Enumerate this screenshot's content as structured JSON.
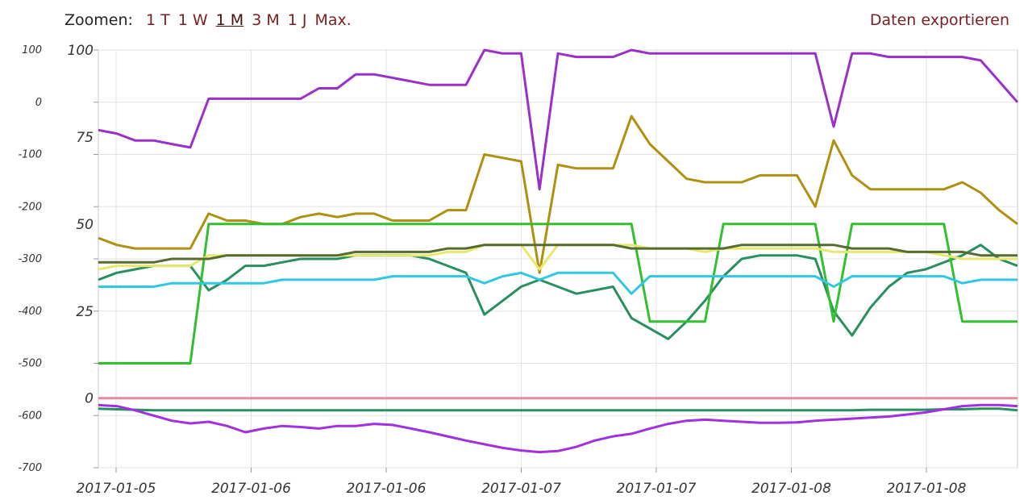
{
  "toolbar": {
    "zoom_label": "Zoomen:",
    "zoom_options": [
      "1 T",
      "1 W",
      "1 M",
      "3 M",
      "1 J",
      "Max."
    ],
    "active_zoom": "1 M",
    "export_label": "Daten exportieren"
  },
  "chart_data": {
    "type": "line",
    "title": "",
    "x_tick_labels": [
      "2017-01-05",
      "2017-01-06",
      "2017-01-06",
      "2017-01-07",
      "2017-01-07",
      "2017-01-08",
      "2017-01-08"
    ],
    "y_left": {
      "ticks": [
        100,
        0,
        -100,
        -200,
        -300,
        -400,
        -500,
        -600,
        -700
      ],
      "ylim": [
        -700,
        100
      ]
    },
    "y_right": {
      "ticks": [
        100,
        75,
        50,
        25,
        0
      ],
      "ylim": [
        -20,
        100
      ]
    },
    "grid": true,
    "x": [
      0,
      2,
      4,
      6,
      8,
      10,
      12,
      14,
      16,
      18,
      20,
      22,
      24,
      26,
      28,
      30,
      32,
      34,
      36,
      38,
      40,
      42,
      44,
      46,
      48,
      50,
      52,
      54,
      56,
      58,
      60,
      62,
      64,
      66,
      68,
      70,
      72,
      74,
      76,
      78,
      80,
      82,
      84,
      86,
      88,
      90,
      92,
      94,
      96,
      98,
      100
    ],
    "series": [
      {
        "color": "#9b30c8",
        "axis": "right",
        "values": [
          77,
          76,
          74,
          74,
          73,
          72,
          86,
          86,
          86,
          86,
          86,
          86,
          89,
          89,
          93,
          93,
          92,
          91,
          90,
          90,
          90,
          100,
          99,
          99,
          60,
          99,
          98,
          98,
          98,
          100,
          99,
          99,
          99,
          99,
          99,
          99,
          99,
          99,
          99,
          99,
          78,
          99,
          99,
          98,
          98,
          98,
          98,
          98,
          97,
          91,
          85
        ]
      },
      {
        "color": "#b09010",
        "axis": "right",
        "values": [
          46,
          44,
          43,
          43,
          43,
          43,
          53,
          51,
          51,
          50,
          50,
          52,
          53,
          52,
          53,
          53,
          51,
          51,
          51,
          54,
          54,
          70,
          69,
          68,
          36,
          67,
          66,
          66,
          66,
          81,
          73,
          68,
          63,
          62,
          62,
          62,
          64,
          64,
          64,
          55,
          74,
          64,
          60,
          60,
          60,
          60,
          60,
          62,
          59,
          54,
          50
        ]
      },
      {
        "color": "#2a8f60",
        "axis": "right",
        "values": [
          34,
          36,
          37,
          38,
          38,
          38,
          31,
          34,
          38,
          38,
          39,
          40,
          40,
          40,
          41,
          41,
          41,
          41,
          40,
          38,
          36,
          24,
          28,
          32,
          34,
          32,
          30,
          31,
          32,
          23,
          20,
          17,
          22,
          28,
          35,
          40,
          41,
          41,
          41,
          40,
          25,
          18,
          26,
          32,
          36,
          37,
          39,
          41,
          44,
          40,
          38
        ]
      },
      {
        "color": "#30c030",
        "axis": "right",
        "values": [
          10,
          10,
          10,
          10,
          10,
          10,
          50,
          50,
          50,
          50,
          50,
          50,
          50,
          50,
          50,
          50,
          50,
          50,
          50,
          50,
          50,
          50,
          50,
          50,
          50,
          50,
          50,
          50,
          50,
          50,
          22,
          22,
          22,
          22,
          50,
          50,
          50,
          50,
          50,
          50,
          22,
          50,
          50,
          50,
          50,
          50,
          50,
          22,
          22,
          22,
          22
        ]
      },
      {
        "color": "#30c8e0",
        "axis": "right",
        "values": [
          32,
          32,
          32,
          32,
          33,
          33,
          33,
          33,
          33,
          33,
          34,
          34,
          34,
          34,
          34,
          34,
          35,
          35,
          35,
          35,
          35,
          33,
          35,
          36,
          34,
          36,
          36,
          36,
          36,
          30,
          35,
          35,
          35,
          35,
          35,
          35,
          35,
          35,
          35,
          35,
          32,
          35,
          35,
          35,
          35,
          35,
          35,
          33,
          34,
          34,
          34
        ]
      },
      {
        "color": "#e8e870",
        "axis": "right",
        "values": [
          37,
          38,
          38,
          38,
          38,
          38,
          41,
          41,
          41,
          41,
          41,
          41,
          41,
          41,
          41,
          41,
          41,
          41,
          41,
          42,
          42,
          44,
          44,
          44,
          37,
          44,
          44,
          44,
          44,
          44,
          43,
          43,
          43,
          42,
          43,
          43,
          43,
          43,
          43,
          43,
          42,
          42,
          42,
          42,
          42,
          42,
          41,
          40,
          40,
          40,
          40
        ]
      },
      {
        "color": "#556b2f",
        "axis": "right",
        "values": [
          39,
          39,
          39,
          39,
          40,
          40,
          40,
          41,
          41,
          41,
          41,
          41,
          41,
          41,
          42,
          42,
          42,
          42,
          42,
          43,
          43,
          44,
          44,
          44,
          44,
          44,
          44,
          44,
          44,
          43,
          43,
          43,
          43,
          43,
          43,
          44,
          44,
          44,
          44,
          44,
          44,
          43,
          43,
          43,
          42,
          42,
          42,
          42,
          41,
          41,
          41
        ]
      },
      {
        "color": "#e88aa0",
        "axis": "right",
        "values": [
          0,
          0,
          0,
          0,
          0,
          0,
          0,
          0,
          0,
          0,
          0,
          0,
          0,
          0,
          0,
          0,
          0,
          0,
          0,
          0,
          0,
          0,
          0,
          0,
          0,
          0,
          0,
          0,
          0,
          0,
          0,
          0,
          0,
          0,
          0,
          0,
          0,
          0,
          0,
          0,
          0,
          0,
          0,
          0,
          0,
          0,
          0,
          0,
          0,
          0,
          0
        ]
      },
      {
        "color": "#2a8f60",
        "axis": "left",
        "values": [
          -587,
          -588,
          -589,
          -590,
          -590,
          -590,
          -590,
          -590,
          -590,
          -590,
          -590,
          -590,
          -590,
          -590,
          -590,
          -590,
          -590,
          -590,
          -590,
          -590,
          -590,
          -590,
          -590,
          -590,
          -590,
          -590,
          -590,
          -590,
          -590,
          -590,
          -590,
          -590,
          -590,
          -590,
          -590,
          -590,
          -590,
          -590,
          -590,
          -590,
          -590,
          -590,
          -589,
          -589,
          -589,
          -589,
          -588,
          -588,
          -587,
          -587,
          -590
        ]
      },
      {
        "color": "#a030e0",
        "axis": "left",
        "values": [
          -580,
          -582,
          -590,
          -600,
          -610,
          -615,
          -612,
          -620,
          -632,
          -625,
          -620,
          -622,
          -625,
          -620,
          -620,
          -616,
          -618,
          -625,
          -632,
          -640,
          -648,
          -655,
          -662,
          -667,
          -670,
          -668,
          -660,
          -648,
          -640,
          -635,
          -625,
          -616,
          -610,
          -608,
          -610,
          -612,
          -614,
          -614,
          -613,
          -610,
          -608,
          -606,
          -604,
          -602,
          -598,
          -594,
          -588,
          -582,
          -580,
          -580,
          -582
        ]
      }
    ]
  }
}
